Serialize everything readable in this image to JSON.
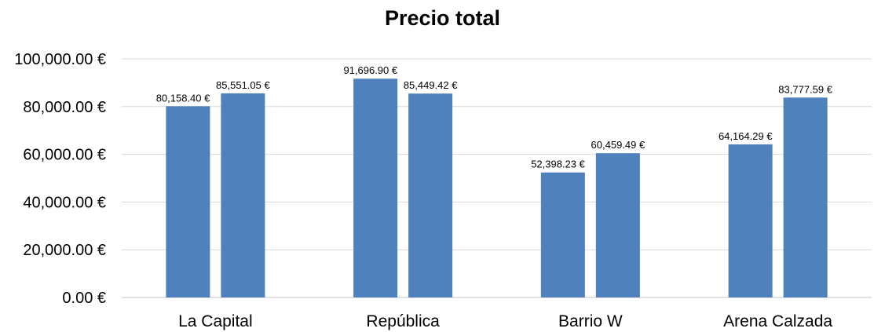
{
  "chart_data": {
    "type": "bar",
    "title": "Precio total",
    "xlabel": "",
    "ylabel": "",
    "categories": [
      "La Capital",
      "República",
      "Barrio W",
      "Arena Calzada"
    ],
    "series": [
      {
        "values": [
          80158.4,
          91696.9,
          52398.23,
          64164.29
        ],
        "labels": [
          "80,158.40 €",
          "91,696.90 €",
          "52,398.23 €",
          "64,164.29 €"
        ]
      },
      {
        "values": [
          85551.05,
          85449.42,
          60459.49,
          83777.59
        ],
        "labels": [
          "85,551.05 €",
          "85,449.42 €",
          "60,459.49 €",
          "83,777.59 €"
        ]
      }
    ],
    "ylim": [
      0,
      100000
    ],
    "yticks": [
      0,
      20000,
      40000,
      60000,
      80000,
      100000
    ],
    "ytick_labels": [
      "0.00 €",
      "20,000.00 €",
      "40,000.00 €",
      "60,000.00 €",
      "80,000.00 €",
      "100,000.00 €"
    ],
    "grid": true,
    "legend": "none",
    "colors": {
      "bar": "#4f81bd",
      "grid": "#d9d9d9"
    }
  }
}
